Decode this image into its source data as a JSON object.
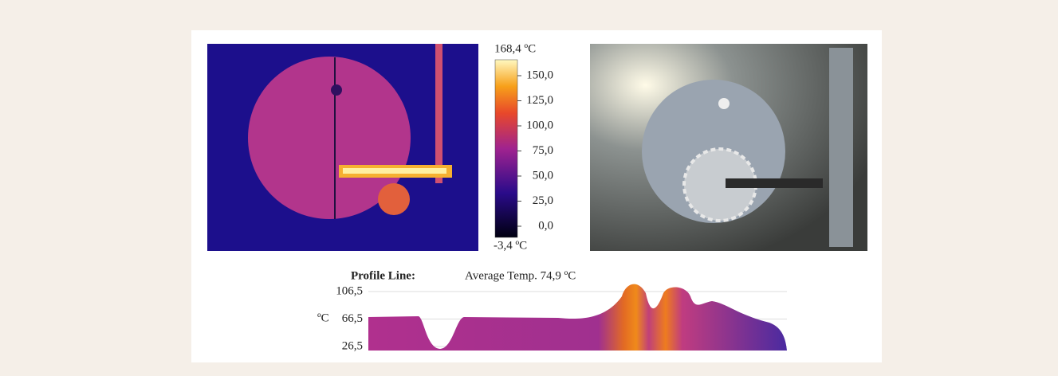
{
  "colorbar": {
    "max_label": "168,4 ºC",
    "ticks": [
      "150,0",
      "125,0",
      "100,0",
      "75,0",
      "50,0",
      "25,0",
      "0,0"
    ],
    "min_label": "-3,4 ºC"
  },
  "profile": {
    "title": "Profile Line:",
    "average": "Average Temp. 74,9 ºC",
    "unit": "ºC",
    "ticks": [
      "106,5",
      "66,5",
      "26,5"
    ]
  }
}
